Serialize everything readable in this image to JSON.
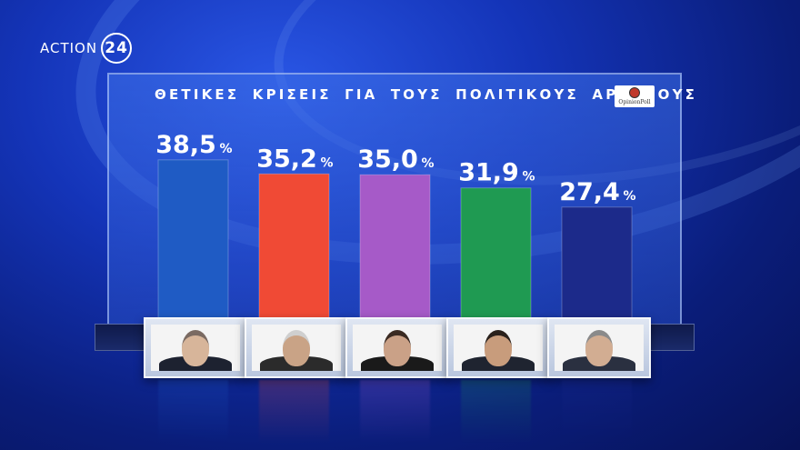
{
  "logo": {
    "text": "ACTION",
    "num": "24"
  },
  "title": "ΘΕΤΙΚΕΣ ΚΡΙΣΕΙΣ ΓΙΑ ΤΟΥΣ ΠΟΛΙΤΙΚΟΥΣ ΑΡΧΗΓΟΥΣ",
  "brand": "OpinionPoll",
  "colors": {
    "bar1": "#1f5bc4",
    "bar2": "#f04a35",
    "bar3": "#a65ac8",
    "bar4": "#1f9a52",
    "bar5": "#1c2a8a"
  },
  "chart_data": {
    "type": "bar",
    "title": "ΘΕΤΙΚΕΣ ΚΡΙΣΕΙΣ ΓΙΑ ΤΟΥΣ ΠΟΛΙΤΙΚΟΥΣ ΑΡΧΗΓΟΥΣ",
    "values": [
      38.5,
      35.2,
      35.0,
      31.9,
      27.4
    ],
    "labels": [
      "38,5",
      "35,2",
      "35,0",
      "31,9",
      "27,4"
    ],
    "unit": "%",
    "colors": [
      "#1f5bc4",
      "#f04a35",
      "#a65ac8",
      "#1f9a52",
      "#1c2a8a"
    ],
    "ylim": [
      0,
      40
    ],
    "grid": false,
    "legend": "none"
  }
}
